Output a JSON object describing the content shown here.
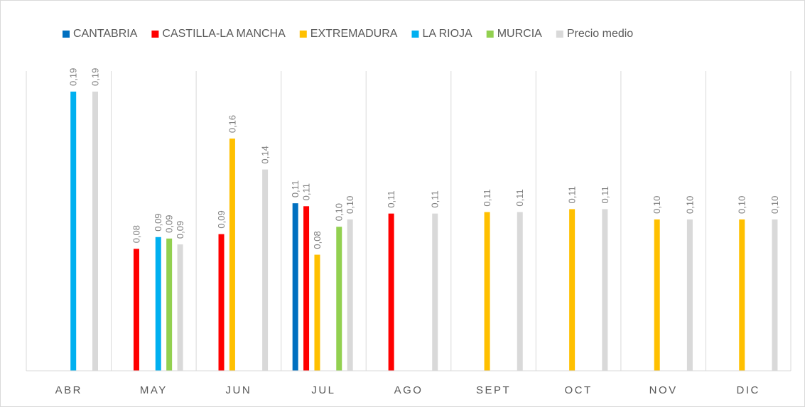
{
  "chart_data": {
    "type": "bar",
    "categories": [
      "ABR",
      "MAY",
      "JUN",
      "JUL",
      "AGO",
      "SEPT",
      "OCT",
      "NOV",
      "DIC"
    ],
    "series": [
      {
        "name": "CANTABRIA",
        "color": "#0070c0",
        "values": [
          null,
          null,
          null,
          0.114,
          null,
          null,
          null,
          null,
          null
        ],
        "value_labels": [
          null,
          null,
          null,
          "0,11",
          null,
          null,
          null,
          null,
          null
        ]
      },
      {
        "name": "CASTILLA-LA MANCHA",
        "color": "#ff0000",
        "values": [
          null,
          0.083,
          0.093,
          0.112,
          0.107,
          null,
          null,
          null,
          null
        ],
        "value_labels": [
          null,
          "0,08",
          "0,09",
          "0,11",
          "0,11",
          null,
          null,
          null,
          null
        ]
      },
      {
        "name": "EXTREMADURA",
        "color": "#ffc000",
        "values": [
          null,
          null,
          0.158,
          0.079,
          null,
          0.108,
          0.11,
          0.103,
          0.103
        ],
        "value_labels": [
          null,
          null,
          "0,16",
          "0,08",
          null,
          "0,11",
          "0,11",
          "0,10",
          "0,10"
        ]
      },
      {
        "name": "LA RIOJA",
        "color": "#00b0f0",
        "values": [
          0.19,
          0.091,
          null,
          null,
          null,
          null,
          null,
          null,
          null
        ],
        "value_labels": [
          "0,19",
          "0,09",
          null,
          null,
          null,
          null,
          null,
          null,
          null
        ]
      },
      {
        "name": "MURCIA",
        "color": "#92d050",
        "values": [
          null,
          0.09,
          null,
          0.098,
          null,
          null,
          null,
          null,
          null
        ],
        "value_labels": [
          null,
          "0,09",
          null,
          "0,10",
          null,
          null,
          null,
          null,
          null
        ]
      },
      {
        "name": "Precio medio",
        "color": "#d9d9d9",
        "values": [
          0.19,
          0.086,
          0.137,
          0.103,
          0.107,
          0.108,
          0.11,
          0.103,
          0.103
        ],
        "value_labels": [
          "0,19",
          "0,09",
          "0,14",
          "0,10",
          "0,11",
          "0,11",
          "0,11",
          "0,10",
          "0,10"
        ]
      }
    ],
    "ylim": [
      0,
      0.204
    ],
    "legend": "top"
  }
}
